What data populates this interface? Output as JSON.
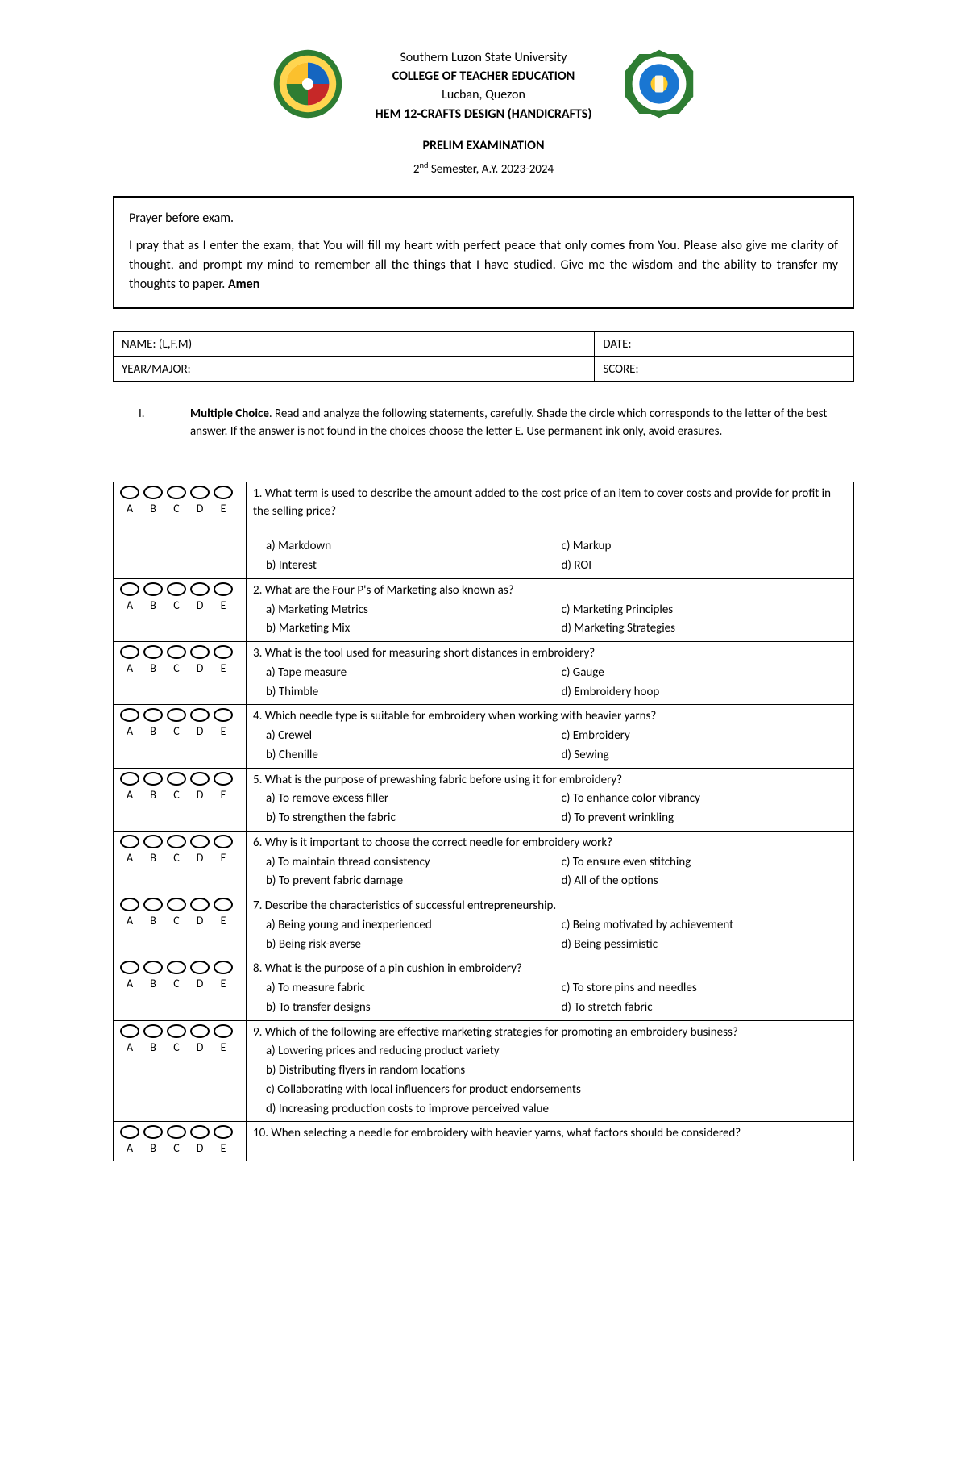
{
  "header": {
    "university": "Southern Luzon State University",
    "college": "COLLEGE OF TEACHER EDUCATION",
    "location": "Lucban, Quezon",
    "course": "HEM 12-CRAFTS DESIGN (HANDICRAFTS)",
    "exam_title": "PRELIM EXAMINATION",
    "semester_prefix": "2",
    "semester_suffix": "nd",
    "semester_rest": " Semester, A.Y. 2023-2024"
  },
  "seal_left": {
    "outer": "#2e7d32",
    "ring": "#ffd54f",
    "center_top": "#1565c0",
    "center_bottom": "#c62828"
  },
  "seal_right": {
    "outer": "#2e7d32",
    "ring": "#ffffff",
    "center": "#1976d2",
    "accent": "#ffca28"
  },
  "prayer": {
    "lead": "Prayer before exam.",
    "body": "I pray that as I enter the exam, that You will fill my heart with perfect peace that only comes from You. Please also give me clarity of thought, and prompt my mind to remember all the things that I have studied. Give me the wisdom and the ability to transfer my thoughts to paper. ",
    "amen": "Amen"
  },
  "info": {
    "name_label": "NAME: (L,F,M)",
    "date_label": "DATE:",
    "year_label": "YEAR/MAJOR:",
    "score_label": "SCORE:"
  },
  "instructions": {
    "roman": "I.",
    "mc": "Multiple Choice",
    "rest": ". Read and analyze the following statements, carefully. Shade the circle which corresponds to the letter of the best answer. If the answer is not found in the choices choose the letter E. Use permanent ink only, avoid erasures."
  },
  "letters": [
    "A",
    "B",
    "C",
    "D",
    "E"
  ],
  "questions": [
    {
      "text": "1. What term is used to describe the amount added to the cost price of an item to cover costs and provide for profit in the selling price?",
      "spaced": true,
      "layout": "grid",
      "opts": [
        "a) Markdown",
        "c) Markup",
        "b) Interest",
        "d) ROI"
      ]
    },
    {
      "text": "2. What are the Four P's of Marketing also known as?",
      "layout": "grid",
      "opts": [
        "a) Marketing Metrics",
        "c) Marketing Principles",
        "b) Marketing Mix",
        "d) Marketing Strategies"
      ]
    },
    {
      "text": "3. What is the tool used for measuring short distances in embroidery?",
      "layout": "grid",
      "opts": [
        "a) Tape measure",
        "c) Gauge",
        "b) Thimble",
        "d) Embroidery hoop"
      ]
    },
    {
      "text": "4. Which needle type is suitable for embroidery when working with heavier yarns?",
      "layout": "grid",
      "opts": [
        "a) Crewel",
        "c) Embroidery",
        "b) Chenille",
        "d) Sewing"
      ]
    },
    {
      "text": "5. What is the purpose of prewashing fabric before using it for embroidery?",
      "layout": "grid",
      "opts": [
        "a) To remove excess filler",
        "c) To enhance color vibrancy",
        "b) To strengthen the fabric",
        "d) To prevent wrinkling"
      ]
    },
    {
      "text": "6. Why is it important to choose the correct needle for embroidery work?",
      "layout": "grid",
      "opts": [
        "a) To maintain thread consistency",
        "c) To ensure even stitching",
        "b) To prevent fabric damage",
        "d) All of the options"
      ]
    },
    {
      "text": "7. Describe the characteristics of successful entrepreneurship.",
      "layout": "grid",
      "opts": [
        "a) Being young and inexperienced",
        "c) Being motivated by achievement",
        "b) Being risk-averse",
        "d) Being pessimistic"
      ]
    },
    {
      "text": "8. What is the purpose of a pin cushion in embroidery?",
      "layout": "grid",
      "opts": [
        "a) To measure fabric",
        "c) To store pins and needles",
        "b) To transfer designs",
        "d) To stretch fabric"
      ]
    },
    {
      "text": "9. Which of the following are effective marketing strategies for promoting an embroidery business?",
      "layout": "list",
      "opts": [
        "a) Lowering prices and reducing product variety",
        "b) Distributing flyers in random locations",
        "c) Collaborating with local influencers for product endorsements",
        "d) Increasing production costs to improve perceived value"
      ]
    },
    {
      "text": "10. When selecting a needle for embroidery with heavier yarns, what factors should be considered?",
      "layout": "none",
      "opts": []
    }
  ]
}
